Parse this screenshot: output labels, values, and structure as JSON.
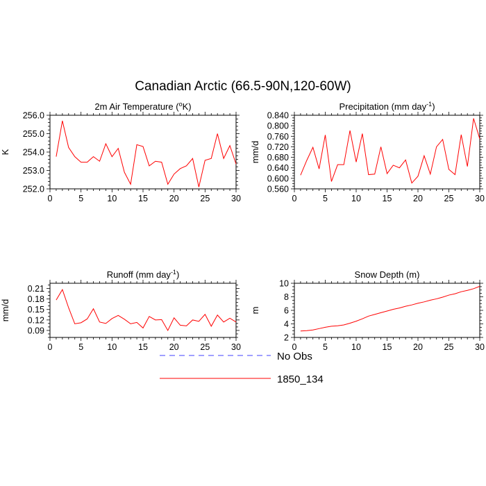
{
  "title": "Canadian Arctic (66.5-90N,120-60W)",
  "legend": {
    "placement": "bottom-center",
    "items": [
      {
        "label": "No Obs",
        "color": "#4040ff",
        "style": "dashed"
      },
      {
        "label": "1850_134",
        "color": "#ff0000",
        "style": "solid"
      }
    ]
  },
  "chart_data": [
    {
      "type": "line",
      "title": "2m Air Temperature (",
      "title_unit": "o",
      "title_suffix": "K)",
      "ylabel": "K",
      "xlim": [
        0,
        30
      ],
      "ylim": [
        252.0,
        256.0
      ],
      "xticks": [
        0,
        5,
        10,
        15,
        20,
        25,
        30
      ],
      "xticklabels": [
        "0",
        "5",
        "10",
        "15",
        "20",
        "25",
        "30"
      ],
      "yticks": [
        252.0,
        253.0,
        254.0,
        255.0,
        256.0
      ],
      "yticklabels": [
        "252.0",
        "253.0",
        "254.0",
        "255.0",
        "256.0"
      ],
      "yminor": 5,
      "series": [
        {
          "name": "1850_134",
          "color": "#ff0000",
          "x": [
            1,
            2,
            3,
            4,
            5,
            6,
            7,
            8,
            9,
            10,
            11,
            12,
            13,
            14,
            15,
            16,
            17,
            18,
            19,
            20,
            21,
            22,
            23,
            24,
            25,
            26,
            27,
            28,
            29,
            30
          ],
          "y": [
            253.75,
            255.7,
            254.25,
            253.75,
            253.45,
            253.45,
            253.75,
            253.5,
            254.45,
            253.75,
            254.2,
            252.9,
            252.25,
            254.4,
            254.3,
            253.25,
            253.5,
            253.45,
            252.25,
            252.8,
            253.1,
            253.25,
            253.65,
            252.1,
            253.55,
            253.65,
            255.0,
            253.65,
            254.35,
            253.35
          ]
        }
      ]
    },
    {
      "type": "line",
      "title": "Precipitation (mm day",
      "title_unit": "-1",
      "title_suffix": ")",
      "ylabel": "mm/d",
      "xlim": [
        0,
        30
      ],
      "ylim": [
        0.56,
        0.84
      ],
      "xticks": [
        0,
        5,
        10,
        15,
        20,
        25,
        30
      ],
      "xticklabels": [
        "0",
        "5",
        "10",
        "15",
        "20",
        "25",
        "30"
      ],
      "yticks": [
        0.56,
        0.6,
        0.64,
        0.68,
        0.72,
        0.76,
        0.8,
        0.84
      ],
      "yticklabels": [
        "0.560",
        "0.600",
        "0.640",
        "0.680",
        "0.720",
        "0.760",
        "0.800",
        "0.840"
      ],
      "yminor": 4,
      "series": [
        {
          "name": "1850_134",
          "color": "#ff0000",
          "x": [
            1,
            2,
            3,
            4,
            5,
            6,
            7,
            8,
            9,
            10,
            11,
            12,
            13,
            14,
            15,
            16,
            17,
            18,
            19,
            20,
            21,
            22,
            23,
            24,
            25,
            26,
            27,
            28,
            29,
            30
          ],
          "y": [
            0.612,
            0.668,
            0.718,
            0.636,
            0.765,
            0.588,
            0.652,
            0.652,
            0.782,
            0.662,
            0.77,
            0.614,
            0.616,
            0.72,
            0.618,
            0.65,
            0.64,
            0.67,
            0.582,
            0.608,
            0.686,
            0.616,
            0.72,
            0.748,
            0.634,
            0.614,
            0.766,
            0.645,
            0.828,
            0.75
          ]
        }
      ]
    },
    {
      "type": "line",
      "title": "Runoff (mm day",
      "title_unit": "-1",
      "title_suffix": ")",
      "ylabel": "mm/d",
      "xlim": [
        0,
        30
      ],
      "ylim": [
        0.07,
        0.225
      ],
      "xticks": [
        0,
        5,
        10,
        15,
        20,
        25,
        30
      ],
      "xticklabels": [
        "0",
        "5",
        "10",
        "15",
        "20",
        "25",
        "30"
      ],
      "yticks": [
        0.09,
        0.12,
        0.15,
        0.18,
        0.21
      ],
      "yticklabels": [
        "0.09",
        "0.12",
        "0.15",
        "0.18",
        "0.21"
      ],
      "yminor": 3,
      "series": [
        {
          "name": "1850_134",
          "color": "#ff0000",
          "x": [
            1,
            2,
            3,
            4,
            5,
            6,
            7,
            8,
            9,
            10,
            11,
            12,
            13,
            14,
            15,
            16,
            17,
            18,
            19,
            20,
            21,
            22,
            23,
            24,
            25,
            26,
            27,
            28,
            29,
            30
          ],
          "y": [
            0.177,
            0.207,
            0.155,
            0.109,
            0.112,
            0.123,
            0.152,
            0.114,
            0.11,
            0.124,
            0.133,
            0.122,
            0.109,
            0.113,
            0.097,
            0.13,
            0.12,
            0.121,
            0.09,
            0.126,
            0.105,
            0.103,
            0.12,
            0.116,
            0.136,
            0.102,
            0.134,
            0.114,
            0.125,
            0.114
          ]
        }
      ]
    },
    {
      "type": "line",
      "title": "Snow Depth (m)",
      "title_unit": "",
      "title_suffix": "",
      "ylabel": "m",
      "xlim": [
        0,
        30
      ],
      "ylim": [
        2,
        10
      ],
      "xticks": [
        0,
        5,
        10,
        15,
        20,
        25,
        30
      ],
      "xticklabels": [
        "0",
        "5",
        "10",
        "15",
        "20",
        "25",
        "30"
      ],
      "yticks": [
        2,
        4,
        6,
        8,
        10
      ],
      "yticklabels": [
        "2",
        "4",
        "6",
        "8",
        "10"
      ],
      "yminor": 4,
      "series": [
        {
          "name": "1850_134",
          "color": "#ff0000",
          "x": [
            1,
            2,
            3,
            4,
            5,
            6,
            7,
            8,
            9,
            10,
            11,
            12,
            13,
            14,
            15,
            16,
            17,
            18,
            19,
            20,
            21,
            22,
            23,
            24,
            25,
            26,
            27,
            28,
            29,
            30
          ],
          "y": [
            2.95,
            3.0,
            3.1,
            3.3,
            3.5,
            3.65,
            3.72,
            3.85,
            4.1,
            4.4,
            4.75,
            5.15,
            5.4,
            5.65,
            5.9,
            6.15,
            6.35,
            6.6,
            6.8,
            7.05,
            7.25,
            7.5,
            7.7,
            7.95,
            8.25,
            8.45,
            8.75,
            8.95,
            9.2,
            9.55
          ]
        }
      ]
    }
  ]
}
